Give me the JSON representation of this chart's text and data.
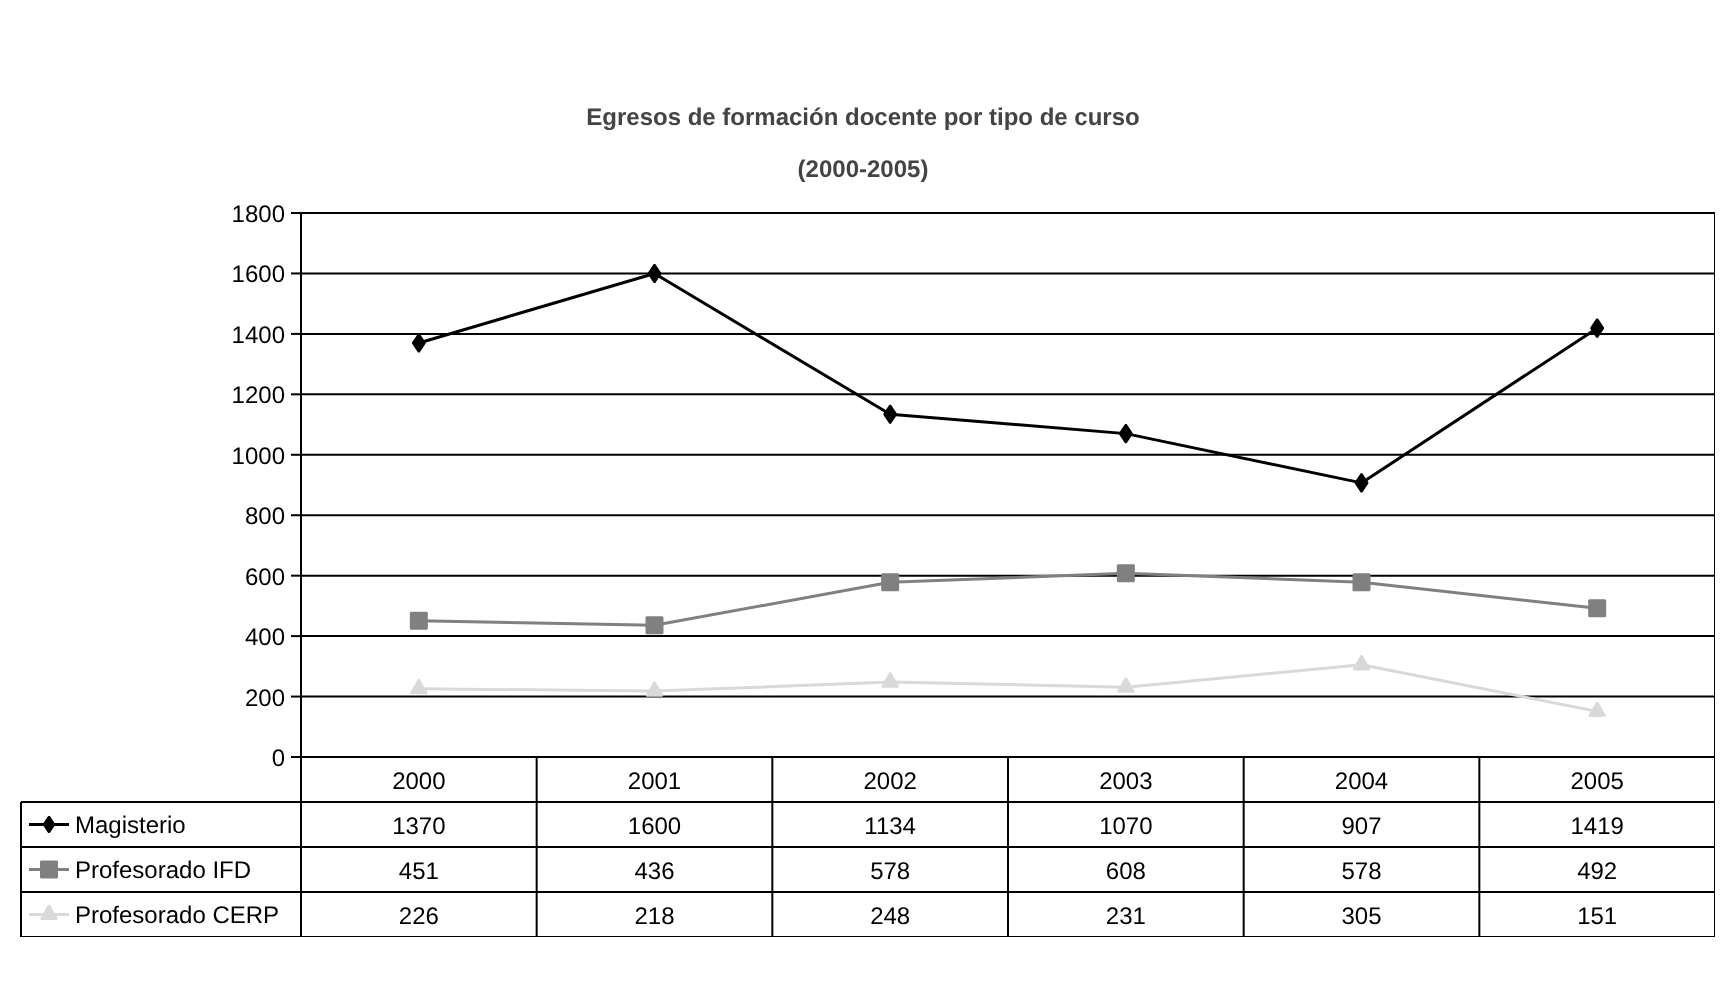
{
  "chart_data": {
    "type": "line",
    "title": "Egresos de formación docente por tipo de curso",
    "subtitle": "(2000-2005)",
    "categories": [
      "2000",
      "2001",
      "2002",
      "2003",
      "2004",
      "2005"
    ],
    "series": [
      {
        "name": "Magisterio",
        "color": "#000000",
        "marker": "diamond",
        "values": [
          1370,
          1600,
          1134,
          1070,
          907,
          1419
        ]
      },
      {
        "name": "Profesorado IFD",
        "color": "#808080",
        "marker": "square",
        "values": [
          451,
          436,
          578,
          608,
          578,
          492
        ]
      },
      {
        "name": "Profesorado CERP",
        "color": "#d9d9d9",
        "marker": "triangle",
        "values": [
          226,
          218,
          248,
          231,
          305,
          151
        ]
      }
    ],
    "ylim": [
      0,
      1800
    ],
    "yticks": [
      0,
      200,
      400,
      600,
      800,
      1000,
      1200,
      1400,
      1600,
      1800
    ],
    "grid": "y",
    "legend": "bottom left",
    "data_labels": true
  }
}
